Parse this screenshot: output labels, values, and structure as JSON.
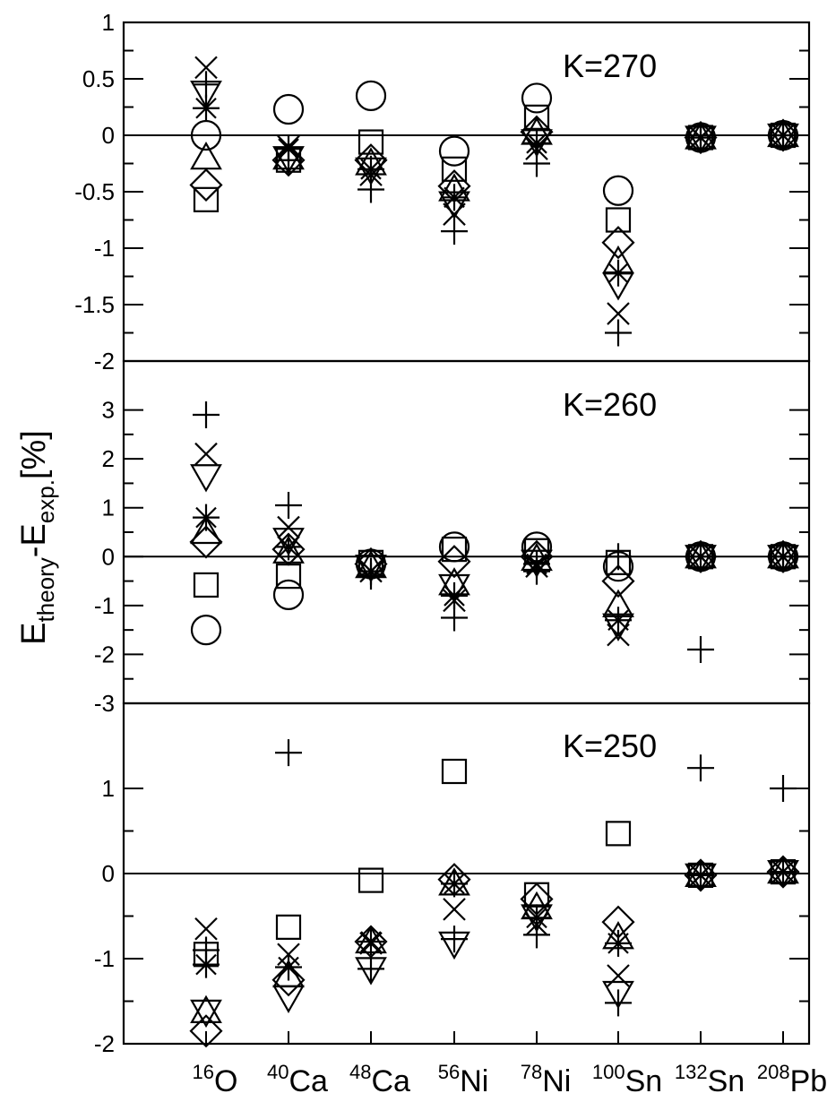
{
  "chart_data": {
    "type": "scatter",
    "ylabel": {
      "main_1": "E",
      "sub_1": "theory",
      "dash": "-E",
      "sub_2": "exp.",
      "unit": "[%]"
    },
    "categories": [
      {
        "mass": "16",
        "symbol": "O"
      },
      {
        "mass": "40",
        "symbol": "Ca"
      },
      {
        "mass": "48",
        "symbol": "Ca"
      },
      {
        "mass": "56",
        "symbol": "Ni"
      },
      {
        "mass": "78",
        "symbol": "Ni"
      },
      {
        "mass": "100",
        "symbol": "Sn"
      },
      {
        "mass": "132",
        "symbol": "Sn"
      },
      {
        "mass": "208",
        "symbol": "Pb"
      }
    ],
    "markers": [
      "circle",
      "square",
      "diamond",
      "triangle-up",
      "triangle-down",
      "star",
      "x",
      "plus"
    ],
    "panels": [
      {
        "label": "K=270",
        "ylim": [
          -2,
          1
        ],
        "yticks": [
          "1",
          "0.5",
          "0",
          "-0.5",
          "-1",
          "-1.5",
          "-2"
        ],
        "ytick_values": [
          1,
          0.5,
          0,
          -0.5,
          -1,
          -1.5,
          -2
        ],
        "series": [
          {
            "marker": "circle",
            "values": [
              0.0,
              0.23,
              0.35,
              -0.14,
              0.33,
              -0.49,
              -0.02,
              0.0
            ]
          },
          {
            "marker": "square",
            "values": [
              -0.57,
              -0.22,
              -0.06,
              -0.3,
              0.16,
              -0.75,
              -0.02,
              0.0
            ]
          },
          {
            "marker": "diamond",
            "values": [
              -0.44,
              -0.22,
              -0.22,
              -0.45,
              0.03,
              -0.95,
              -0.02,
              0.0
            ]
          },
          {
            "marker": "triangle-up",
            "values": [
              -0.2,
              -0.2,
              -0.25,
              -0.48,
              0.02,
              -1.12,
              -0.02,
              0.0
            ]
          },
          {
            "marker": "triangle-down",
            "values": [
              0.38,
              -0.2,
              -0.3,
              -0.6,
              -0.05,
              -1.32,
              -0.02,
              0.0
            ]
          },
          {
            "marker": "star",
            "values": [
              0.24,
              -0.12,
              -0.3,
              -0.55,
              -0.07,
              -1.22,
              -0.02,
              0.0
            ]
          },
          {
            "marker": "x",
            "values": [
              0.6,
              -0.1,
              -0.35,
              -0.7,
              -0.12,
              -1.58,
              -0.02,
              0.0
            ]
          },
          {
            "marker": "plus",
            "values": [
              0.45,
              -0.22,
              -0.48,
              -0.85,
              -0.25,
              -1.75,
              -0.02,
              0.0
            ]
          }
        ]
      },
      {
        "label": "K=260",
        "ylim": [
          -3,
          4
        ],
        "yticks": [
          "3",
          "2",
          "1",
          "0",
          "-1",
          "-2",
          "-3"
        ],
        "ytick_values": [
          3,
          2,
          1,
          0,
          -1,
          -2,
          -3
        ],
        "series": [
          {
            "marker": "circle",
            "values": [
              -1.5,
              -0.78,
              -0.15,
              0.2,
              0.2,
              -0.2,
              0.0,
              0.0
            ]
          },
          {
            "marker": "square",
            "values": [
              -0.58,
              -0.4,
              -0.12,
              0.15,
              0.12,
              -0.12,
              0.0,
              0.0
            ]
          },
          {
            "marker": "diamond",
            "values": [
              0.3,
              0.15,
              -0.15,
              -0.1,
              0.0,
              -0.5,
              0.0,
              0.0
            ]
          },
          {
            "marker": "triangle-up",
            "values": [
              0.5,
              0.1,
              -0.2,
              -0.55,
              -0.05,
              -1.0,
              0.0,
              0.0
            ]
          },
          {
            "marker": "triangle-down",
            "values": [
              1.65,
              0.35,
              -0.2,
              -0.6,
              -0.1,
              -1.4,
              0.0,
              0.0
            ]
          },
          {
            "marker": "star",
            "values": [
              0.8,
              0.2,
              -0.3,
              -0.8,
              -0.15,
              -1.3,
              0.0,
              0.0
            ]
          },
          {
            "marker": "x",
            "values": [
              2.1,
              0.6,
              -0.3,
              -0.9,
              -0.2,
              -1.6,
              0.0,
              0.0
            ]
          },
          {
            "marker": "plus",
            "values": [
              2.9,
              1.05,
              -0.4,
              -1.25,
              -0.3,
              0.0,
              -1.9,
              0.0
            ]
          }
        ]
      },
      {
        "label": "K=250",
        "ylim": [
          -2,
          2
        ],
        "yticks": [
          "1",
          "0",
          "-1",
          "-2"
        ],
        "ytick_values": [
          1,
          0,
          -1,
          -2
        ],
        "series": [
          {
            "marker": "square",
            "values": [
              -0.95,
              -0.63,
              -0.08,
              1.2,
              -0.25,
              0.47,
              -0.02,
              0.02
            ]
          },
          {
            "marker": "diamond",
            "values": [
              -1.85,
              -1.25,
              -0.8,
              -0.07,
              -0.3,
              -0.57,
              -0.02,
              0.02
            ]
          },
          {
            "marker": "triangle-up",
            "values": [
              -1.62,
              -1.2,
              -0.8,
              -0.12,
              -0.4,
              -0.75,
              -0.02,
              0.02
            ]
          },
          {
            "marker": "triangle-down",
            "values": [
              -1.62,
              -1.45,
              -1.12,
              -0.82,
              -0.5,
              -1.4,
              -0.02,
              0.02
            ]
          },
          {
            "marker": "star",
            "values": [
              -1.07,
              -1.1,
              -0.8,
              -0.12,
              -0.52,
              -0.82,
              -0.02,
              0.02
            ]
          },
          {
            "marker": "x",
            "values": [
              -0.65,
              -0.95,
              -0.82,
              -0.42,
              -0.6,
              -1.2,
              -0.02,
              0.02
            ]
          },
          {
            "marker": "plus",
            "values": [
              -0.9,
              1.42,
              -1.12,
              -0.77,
              -0.72,
              -1.52,
              1.24,
              1.0
            ]
          }
        ]
      }
    ]
  }
}
